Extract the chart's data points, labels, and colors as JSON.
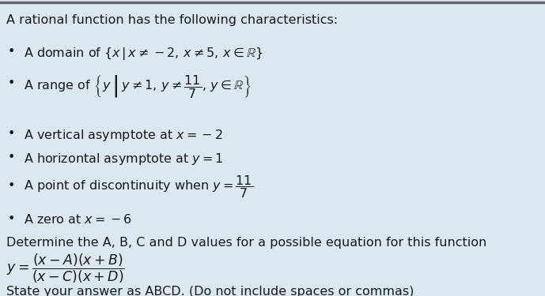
{
  "bg_color": "#dce8f0",
  "top_border_color": "#666666",
  "text_color": "#1a1a1a",
  "title": "A rational function has the following characteristics:",
  "determine_text": "Determine the A, B, C and D values for a possible equation for this function",
  "state_text": "State your answer as ABCD. (Do not include spaces or commas)",
  "fs": 11.5,
  "fsm": 11.5,
  "fig_w": 6.89,
  "fig_h": 3.75,
  "dpi": 100
}
